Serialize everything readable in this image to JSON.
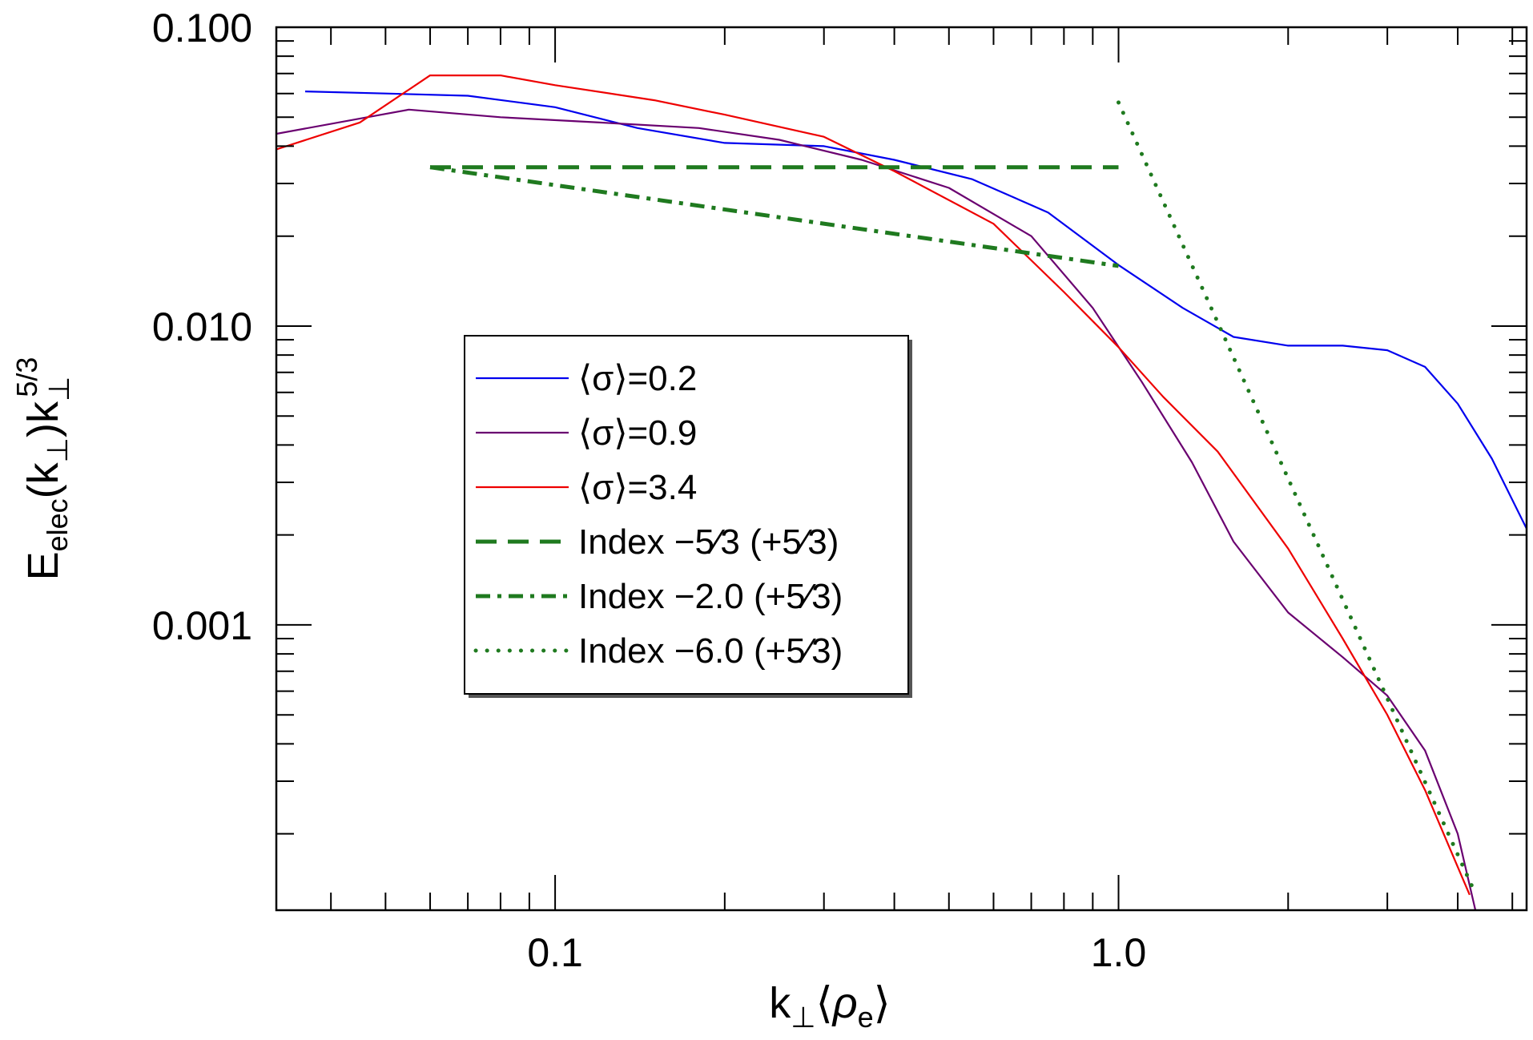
{
  "chart_data": {
    "type": "line",
    "title": "",
    "xscale": "log",
    "yscale": "log",
    "xlim": [
      0.032,
      5.3
    ],
    "ylim": [
      0.000111,
      0.1
    ],
    "xlabel": {
      "main": "k",
      "sub": "⊥",
      "bracket_open": "⟨",
      "rho": "ρ",
      "rho_sub": "e",
      "bracket_close": "⟩"
    },
    "ylabel": {
      "main": "E",
      "sub": "elec",
      "k_open": "(k",
      "k_sub": "⊥",
      "k_close": ")k",
      "exp_sub": "⊥",
      "exp_sup": "5/3"
    },
    "xtick_labels": [
      {
        "value": 0.1,
        "label": "0.1"
      },
      {
        "value": 1.0,
        "label": "1.0"
      }
    ],
    "ytick_labels": [
      {
        "value": 0.1,
        "label": "0.100"
      },
      {
        "value": 0.01,
        "label": "0.010"
      },
      {
        "value": 0.001,
        "label": "0.001"
      }
    ],
    "grid": false,
    "legend_position": "center-left",
    "series": [
      {
        "name": "⟨σ⟩=0.2",
        "color": "#0000ee",
        "style": "solid",
        "points": [
          [
            0.036,
            0.061
          ],
          [
            0.05,
            0.06
          ],
          [
            0.07,
            0.059
          ],
          [
            0.1,
            0.054
          ],
          [
            0.14,
            0.046
          ],
          [
            0.2,
            0.041
          ],
          [
            0.3,
            0.04
          ],
          [
            0.4,
            0.036
          ],
          [
            0.55,
            0.031
          ],
          [
            0.75,
            0.024
          ],
          [
            1.0,
            0.016
          ],
          [
            1.3,
            0.0115
          ],
          [
            1.6,
            0.0092
          ],
          [
            2.0,
            0.0086
          ],
          [
            2.5,
            0.0086
          ],
          [
            3.0,
            0.0083
          ],
          [
            3.5,
            0.0073
          ],
          [
            4.0,
            0.0055
          ],
          [
            4.6,
            0.0036
          ],
          [
            5.3,
            0.0021
          ]
        ]
      },
      {
        "name": "⟨σ⟩=0.9",
        "color": "#6a0070",
        "style": "solid",
        "points": [
          [
            0.032,
            0.044
          ],
          [
            0.055,
            0.053
          ],
          [
            0.08,
            0.05
          ],
          [
            0.12,
            0.048
          ],
          [
            0.18,
            0.046
          ],
          [
            0.25,
            0.042
          ],
          [
            0.35,
            0.036
          ],
          [
            0.5,
            0.029
          ],
          [
            0.7,
            0.02
          ],
          [
            0.9,
            0.0115
          ],
          [
            1.1,
            0.0065
          ],
          [
            1.35,
            0.0035
          ],
          [
            1.6,
            0.0019
          ],
          [
            2.0,
            0.0011
          ],
          [
            2.5,
            0.00078
          ],
          [
            3.0,
            0.00058
          ],
          [
            3.5,
            0.00038
          ],
          [
            4.0,
            0.0002
          ],
          [
            4.3,
            0.000111
          ]
        ]
      },
      {
        "name": "⟨σ⟩=3.4",
        "color": "#ee0000",
        "style": "solid",
        "points": [
          [
            0.032,
            0.039
          ],
          [
            0.045,
            0.048
          ],
          [
            0.06,
            0.069
          ],
          [
            0.08,
            0.069
          ],
          [
            0.1,
            0.064
          ],
          [
            0.15,
            0.057
          ],
          [
            0.2,
            0.051
          ],
          [
            0.3,
            0.043
          ],
          [
            0.4,
            0.033
          ],
          [
            0.6,
            0.022
          ],
          [
            0.8,
            0.013
          ],
          [
            1.0,
            0.0085
          ],
          [
            1.2,
            0.0058
          ],
          [
            1.5,
            0.0038
          ],
          [
            2.0,
            0.0018
          ],
          [
            2.5,
            0.0009
          ],
          [
            3.0,
            0.0005
          ],
          [
            3.5,
            0.00028
          ],
          [
            4.0,
            0.000155
          ],
          [
            4.2,
            0.000125
          ]
        ]
      },
      {
        "name": "Index −5⁄3 (+5⁄3)",
        "color": "#1f7a1f",
        "style": "dashed",
        "points": [
          [
            0.06,
            0.034
          ],
          [
            1.0,
            0.034
          ]
        ]
      },
      {
        "name": "Index −2.0 (+5⁄3)",
        "color": "#1f7a1f",
        "style": "dashdot",
        "points": [
          [
            0.06,
            0.034
          ],
          [
            1.0,
            0.0159
          ]
        ]
      },
      {
        "name": "Index −6.0 (+5⁄3)",
        "color": "#1f7a1f",
        "style": "dotted",
        "points": [
          [
            1.0,
            0.056
          ],
          [
            4.3,
            0.000126
          ]
        ]
      }
    ]
  }
}
